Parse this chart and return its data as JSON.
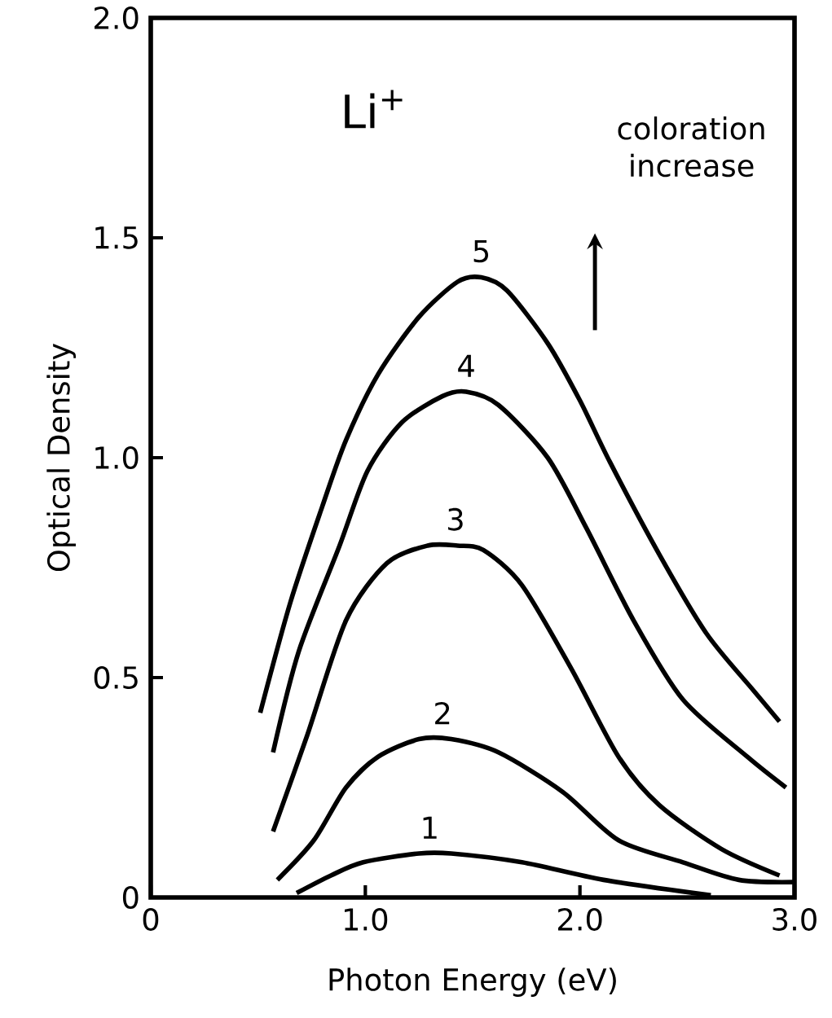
{
  "chart_data": {
    "type": "line",
    "xlabel": "Photon Energy (eV)",
    "ylabel": "Optical Density",
    "xlim": [
      0,
      3
    ],
    "ylim": [
      0,
      2
    ],
    "xticks": [
      0,
      {
        "value": 1,
        "label": "1.0"
      },
      {
        "value": 2,
        "label": "2.0"
      },
      {
        "value": 3,
        "label": "3.0"
      }
    ],
    "yticks": [
      0,
      {
        "value": 0.5,
        "label": "0.5"
      },
      {
        "value": 1,
        "label": "1.0"
      },
      {
        "value": 1.5,
        "label": "1.5"
      },
      {
        "value": 2,
        "label": "2.0"
      }
    ],
    "series": [
      {
        "color": "#000000",
        "x": [
          0.68,
          0.84,
          0.99,
          1.25,
          1.4,
          1.73,
          2.11,
          2.61
        ],
        "values": [
          0.01,
          0.05,
          0.08,
          0.1,
          0.1,
          0.08,
          0.04,
          0.005
        ]
      },
      {
        "color": "#000000",
        "x": [
          0.59,
          0.76,
          0.91,
          1.06,
          1.25,
          1.4,
          1.62,
          1.92,
          2.18,
          2.48,
          2.74,
          3.0
        ],
        "values": [
          0.04,
          0.13,
          0.25,
          0.32,
          0.36,
          0.36,
          0.33,
          0.24,
          0.13,
          0.08,
          0.04,
          0.035
        ]
      },
      {
        "color": "#000000",
        "x": [
          0.57,
          0.73,
          0.91,
          1.1,
          1.29,
          1.43,
          1.55,
          1.73,
          1.96,
          2.18,
          2.37,
          2.66,
          2.93
        ],
        "values": [
          0.15,
          0.37,
          0.63,
          0.76,
          0.8,
          0.8,
          0.79,
          0.71,
          0.52,
          0.32,
          0.21,
          0.11,
          0.05
        ]
      },
      {
        "color": "#000000",
        "x": [
          0.57,
          0.69,
          0.88,
          1.01,
          1.17,
          1.36,
          1.47,
          1.62,
          1.85,
          2.03,
          2.25,
          2.48,
          2.78,
          2.96
        ],
        "values": [
          0.33,
          0.56,
          0.8,
          0.97,
          1.08,
          1.14,
          1.15,
          1.12,
          1.0,
          0.84,
          0.63,
          0.45,
          0.32,
          0.25
        ]
      },
      {
        "color": "#000000",
        "x": [
          0.51,
          0.65,
          0.8,
          0.91,
          1.06,
          1.25,
          1.43,
          1.54,
          1.66,
          1.85,
          2.0,
          2.14,
          2.37,
          2.59,
          2.81,
          2.93
        ],
        "values": [
          0.42,
          0.67,
          0.89,
          1.04,
          1.19,
          1.32,
          1.4,
          1.41,
          1.38,
          1.26,
          1.13,
          0.99,
          0.78,
          0.6,
          0.47,
          0.4
        ]
      }
    ],
    "annotations": [
      {
        "text": "1",
        "x": 1.3,
        "y": 0.1
      },
      {
        "text": "2",
        "x": 1.36,
        "y": 0.36
      },
      {
        "text": "3",
        "x": 1.42,
        "y": 0.8
      },
      {
        "text": "4",
        "x": 1.47,
        "y": 1.15
      },
      {
        "text": "5",
        "x": 1.54,
        "y": 1.41
      },
      "Li$^{+}$",
      "coloration increase"
    ]
  }
}
